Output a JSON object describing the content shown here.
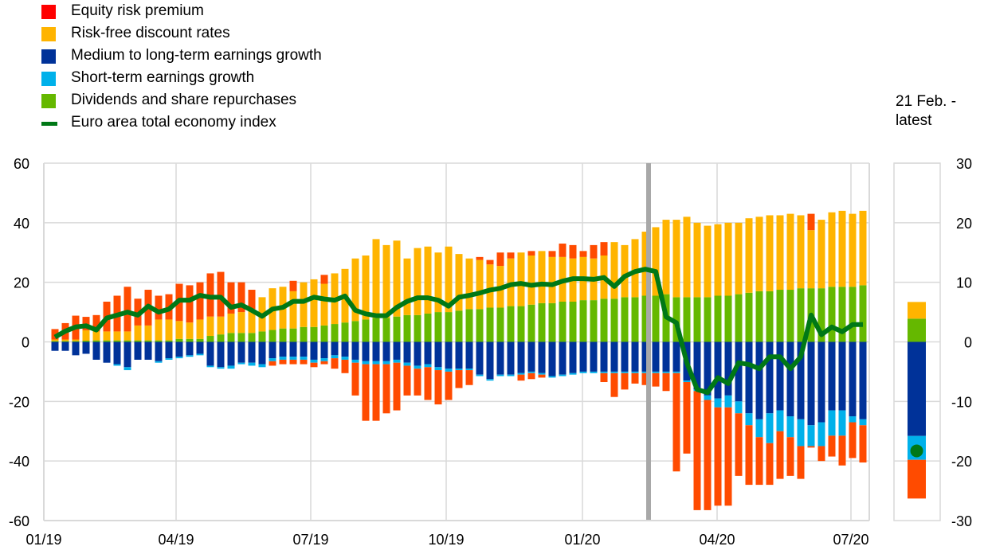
{
  "legend": [
    {
      "label": "Equity risk premium",
      "color": "#ff0000",
      "kind": "box"
    },
    {
      "label": "Risk-free discount rates",
      "color": "#ffb400",
      "kind": "box"
    },
    {
      "label": "Medium to long-term earnings growth",
      "color": "#003299",
      "kind": "box"
    },
    {
      "label": "Short-term earnings growth",
      "color": "#00b1ea",
      "kind": "box"
    },
    {
      "label": "Dividends and share repurchases",
      "color": "#65b800",
      "kind": "box"
    },
    {
      "label": "Euro area total economy index",
      "color": "#007816",
      "kind": "line"
    }
  ],
  "side_panel": {
    "title_line1": "21 Feb. -",
    "title_line2": "latest",
    "stack": {
      "dividends": 3.9,
      "risk_free": 2.8,
      "medium_long_earnings": -15.8,
      "short_term_earnings": -4.0,
      "equity_risk_premium": -6.5
    },
    "index_value": -18.3
  },
  "chart_data": {
    "type": "bar",
    "subtype": "stacked bar with line",
    "left_axis": {
      "ylim": [
        -60,
        60
      ],
      "ticks": [
        "60",
        "40",
        "20",
        "0",
        "-20",
        "-40",
        "-60"
      ]
    },
    "right_axis": {
      "ylim": [
        -30,
        30
      ],
      "ticks": [
        "30",
        "20",
        "10",
        "0",
        "-10",
        "-20",
        "-30"
      ]
    },
    "x_ticks": [
      "01/19",
      "04/19",
      "07/19",
      "10/19",
      "01/20",
      "04/20",
      "07/20"
    ],
    "grid": true,
    "vertical_marker": "21 Feb. 2020",
    "colors": {
      "erp": "#ff4b00",
      "rf": "#ffb400",
      "mlt": "#003299",
      "st": "#00b1ea",
      "div": "#65b800",
      "line": "#007816",
      "marker": "#a8a8a8",
      "grid": "#d9d9d9"
    },
    "series_order": [
      "div",
      "rf",
      "erp_pos",
      "mlt",
      "st",
      "erp_neg"
    ],
    "bars": [
      {
        "div": 0.3,
        "rf": 0.5,
        "erp_pos": 3.5,
        "mlt": -3,
        "st": 0,
        "erp_neg": 0,
        "line": 0.8
      },
      {
        "div": 0.3,
        "rf": 0.5,
        "erp_pos": 5.5,
        "mlt": -3,
        "st": 0,
        "erp_neg": 0,
        "line": 1.8
      },
      {
        "div": 0.3,
        "rf": 0.5,
        "erp_pos": 8,
        "mlt": -4.5,
        "st": 0,
        "erp_neg": 0,
        "line": 2.5
      },
      {
        "div": 0.4,
        "rf": 3.5,
        "erp_pos": 4.5,
        "mlt": -4,
        "st": 0,
        "erp_neg": 0,
        "line": 2.7
      },
      {
        "div": 0.5,
        "rf": 3,
        "erp_pos": 5.5,
        "mlt": -6,
        "st": 0,
        "erp_neg": 0,
        "line": 2
      },
      {
        "div": 0.5,
        "rf": 3,
        "erp_pos": 10,
        "mlt": -7,
        "st": 0,
        "erp_neg": 0,
        "line": 4
      },
      {
        "div": 0.5,
        "rf": 3,
        "erp_pos": 12,
        "mlt": -7.5,
        "st": -0.5,
        "erp_neg": 0,
        "line": 4.5
      },
      {
        "div": 0.5,
        "rf": 3,
        "erp_pos": 15,
        "mlt": -8.5,
        "st": -1,
        "erp_neg": 0,
        "line": 5
      },
      {
        "div": 0.5,
        "rf": 5,
        "erp_pos": 9,
        "mlt": -6,
        "st": 0,
        "erp_neg": 0,
        "line": 4.5
      },
      {
        "div": 0.5,
        "rf": 5,
        "erp_pos": 12,
        "mlt": -6,
        "st": 0,
        "erp_neg": 0,
        "line": 6
      },
      {
        "div": 0.5,
        "rf": 7,
        "erp_pos": 8,
        "mlt": -6.5,
        "st": -0.5,
        "erp_neg": 0,
        "line": 5
      },
      {
        "div": 0.5,
        "rf": 7,
        "erp_pos": 8.5,
        "mlt": -5.5,
        "st": -0.5,
        "erp_neg": 0,
        "line": 5.5
      },
      {
        "div": 1,
        "rf": 6,
        "erp_pos": 12.5,
        "mlt": -5,
        "st": -0.5,
        "erp_neg": 0,
        "line": 7
      },
      {
        "div": 1,
        "rf": 5.5,
        "erp_pos": 12.5,
        "mlt": -4.5,
        "st": -0.5,
        "erp_neg": 0,
        "line": 7
      },
      {
        "div": 1,
        "rf": 6.5,
        "erp_pos": 12.5,
        "mlt": -4,
        "st": -0.5,
        "erp_neg": 0,
        "line": 7.8
      },
      {
        "div": 2,
        "rf": 6.5,
        "erp_pos": 14.5,
        "mlt": -8,
        "st": -0.5,
        "erp_neg": 0,
        "line": 7.5
      },
      {
        "div": 2.5,
        "rf": 6,
        "erp_pos": 15,
        "mlt": -8.5,
        "st": -0.5,
        "erp_neg": 0,
        "line": 7.5
      },
      {
        "div": 3,
        "rf": 6.5,
        "erp_pos": 10.5,
        "mlt": -8,
        "st": -1,
        "erp_neg": 0,
        "line": 5.8
      },
      {
        "div": 3,
        "rf": 7,
        "erp_pos": 10,
        "mlt": -7,
        "st": -0.5,
        "erp_neg": 0,
        "line": 6.2
      },
      {
        "div": 3,
        "rf": 8,
        "erp_pos": 6.5,
        "mlt": -7,
        "st": -1,
        "erp_neg": 0,
        "line": 5.3
      },
      {
        "div": 3.5,
        "rf": 11.5,
        "erp_pos": 0,
        "mlt": -7.5,
        "st": -1,
        "erp_neg": 0,
        "line": 4.3
      },
      {
        "div": 4,
        "rf": 14,
        "erp_pos": 0,
        "mlt": -5.5,
        "st": -1,
        "erp_neg": -1.5,
        "line": 5.5
      },
      {
        "div": 4.5,
        "rf": 14,
        "erp_pos": 0,
        "mlt": -5,
        "st": -1,
        "erp_neg": -1.5,
        "line": 5.8
      },
      {
        "div": 4.5,
        "rf": 12.5,
        "erp_pos": 3.5,
        "mlt": -5,
        "st": -1,
        "erp_neg": -1.5,
        "line": 6.8
      },
      {
        "div": 5,
        "rf": 15,
        "erp_pos": 0,
        "mlt": -5,
        "st": -1,
        "erp_neg": -1.5,
        "line": 6.8
      },
      {
        "div": 5,
        "rf": 16,
        "erp_pos": 0,
        "mlt": -6,
        "st": -1,
        "erp_neg": -1.5,
        "line": 7.5
      },
      {
        "div": 5.5,
        "rf": 14,
        "erp_pos": 3,
        "mlt": -5.5,
        "st": -1,
        "erp_neg": -1,
        "line": 7.2
      },
      {
        "div": 6,
        "rf": 17,
        "erp_pos": 0,
        "mlt": -4.5,
        "st": -1,
        "erp_neg": -3.5,
        "line": 7
      },
      {
        "div": 6.5,
        "rf": 18,
        "erp_pos": 0,
        "mlt": -5,
        "st": -1,
        "erp_neg": -4.5,
        "line": 7.7
      },
      {
        "div": 7,
        "rf": 21,
        "erp_pos": 0,
        "mlt": -6,
        "st": -1,
        "erp_neg": -11,
        "line": 5.3
      },
      {
        "div": 7.5,
        "rf": 21.5,
        "erp_pos": 0,
        "mlt": -6.5,
        "st": -1,
        "erp_neg": -19,
        "line": 4.7
      },
      {
        "div": 8,
        "rf": 26.5,
        "erp_pos": 0,
        "mlt": -6.5,
        "st": -1,
        "erp_neg": -19,
        "line": 4.4
      },
      {
        "div": 8,
        "rf": 24.5,
        "erp_pos": 0,
        "mlt": -6.5,
        "st": -1,
        "erp_neg": -16.5,
        "line": 4.4
      },
      {
        "div": 8.5,
        "rf": 25.5,
        "erp_pos": 0,
        "mlt": -6,
        "st": -1,
        "erp_neg": -16,
        "line": 5.8
      },
      {
        "div": 9,
        "rf": 19,
        "erp_pos": 0,
        "mlt": -7,
        "st": -1,
        "erp_neg": -10,
        "line": 6.8
      },
      {
        "div": 9,
        "rf": 22.5,
        "erp_pos": 0,
        "mlt": -8,
        "st": -1,
        "erp_neg": -9,
        "line": 7.4
      },
      {
        "div": 9.5,
        "rf": 22.5,
        "erp_pos": 0,
        "mlt": -7.5,
        "st": -1,
        "erp_neg": -11,
        "line": 7.4
      },
      {
        "div": 10,
        "rf": 20,
        "erp_pos": 0,
        "mlt": -8.5,
        "st": -1,
        "erp_neg": -11.5,
        "line": 7
      },
      {
        "div": 10,
        "rf": 22,
        "erp_pos": 0,
        "mlt": -9,
        "st": -1,
        "erp_neg": -9.5,
        "line": 6
      },
      {
        "div": 10.5,
        "rf": 19,
        "erp_pos": 0,
        "mlt": -9,
        "st": -0.5,
        "erp_neg": -6,
        "line": 7.5
      },
      {
        "div": 11,
        "rf": 17,
        "erp_pos": 0,
        "mlt": -9,
        "st": -0.5,
        "erp_neg": -5,
        "line": 7.8
      },
      {
        "div": 11,
        "rf": 16.5,
        "erp_pos": 1,
        "mlt": -11,
        "st": -0.5,
        "erp_neg": 0,
        "line": 8.2
      },
      {
        "div": 11.5,
        "rf": 14.5,
        "erp_pos": 1.5,
        "mlt": -12.5,
        "st": -0.5,
        "erp_neg": 0,
        "line": 8.7
      },
      {
        "div": 11.5,
        "rf": 14,
        "erp_pos": 4.5,
        "mlt": -11,
        "st": -0.5,
        "erp_neg": 0,
        "line": 9
      },
      {
        "div": 12,
        "rf": 16,
        "erp_pos": 2,
        "mlt": -11,
        "st": -0.5,
        "erp_neg": 0,
        "line": 9.6
      },
      {
        "div": 12,
        "rf": 18,
        "erp_pos": 0,
        "mlt": -10.5,
        "st": -0.5,
        "erp_neg": -2,
        "line": 9.8
      },
      {
        "div": 12.5,
        "rf": 16.5,
        "erp_pos": 1.5,
        "mlt": -10,
        "st": -0.5,
        "erp_neg": -2,
        "line": 9.5
      },
      {
        "div": 13,
        "rf": 17.5,
        "erp_pos": 0,
        "mlt": -10.5,
        "st": -0.5,
        "erp_neg": -1,
        "line": 9.7
      },
      {
        "div": 13,
        "rf": 15.5,
        "erp_pos": 2,
        "mlt": -11.5,
        "st": -0.5,
        "erp_neg": 0,
        "line": 9.6
      },
      {
        "div": 13.5,
        "rf": 15,
        "erp_pos": 4.5,
        "mlt": -11,
        "st": -0.5,
        "erp_neg": 0,
        "line": 10.2
      },
      {
        "div": 13.5,
        "rf": 14.5,
        "erp_pos": 4.5,
        "mlt": -10.5,
        "st": -0.5,
        "erp_neg": 0,
        "line": 10.6
      },
      {
        "div": 14,
        "rf": 14.5,
        "erp_pos": 2,
        "mlt": -10,
        "st": -0.5,
        "erp_neg": 0,
        "line": 10.6
      },
      {
        "div": 14,
        "rf": 14,
        "erp_pos": 4.5,
        "mlt": -10,
        "st": -0.5,
        "erp_neg": 0,
        "line": 10.5
      },
      {
        "div": 14.5,
        "rf": 14.5,
        "erp_pos": 4.5,
        "mlt": -10,
        "st": -0.5,
        "erp_neg": -3,
        "line": 10.8
      },
      {
        "div": 14.5,
        "rf": 19,
        "erp_pos": 0,
        "mlt": -10,
        "st": -0.5,
        "erp_neg": -8,
        "line": 9.3
      },
      {
        "div": 15,
        "rf": 17.5,
        "erp_pos": 0,
        "mlt": -10,
        "st": -0.5,
        "erp_neg": -5.5,
        "line": 11
      },
      {
        "div": 15,
        "rf": 19.5,
        "erp_pos": 0,
        "mlt": -10,
        "st": -0.5,
        "erp_neg": -3.5,
        "line": 11.8
      },
      {
        "div": 15.5,
        "rf": 21.5,
        "erp_pos": 0,
        "mlt": -10,
        "st": -0.5,
        "erp_neg": -4,
        "line": 12.2
      },
      {
        "div": 15.5,
        "rf": 23,
        "erp_pos": 0,
        "mlt": -10,
        "st": -0.5,
        "erp_neg": -4.5,
        "line": 11.8
      },
      {
        "div": 16,
        "rf": 25,
        "erp_pos": 0,
        "mlt": -10,
        "st": -0.5,
        "erp_neg": -6,
        "line": 4.2
      },
      {
        "div": 15,
        "rf": 26,
        "erp_pos": 0,
        "mlt": -10,
        "st": -0.5,
        "erp_neg": -33,
        "line": 3.2
      },
      {
        "div": 15,
        "rf": 27,
        "erp_pos": 0,
        "mlt": -13,
        "st": -0.5,
        "erp_neg": -24,
        "line": -3.5
      },
      {
        "div": 15,
        "rf": 25,
        "erp_pos": 0,
        "mlt": -16,
        "st": -0.5,
        "erp_neg": -40,
        "line": -8
      },
      {
        "div": 15,
        "rf": 24,
        "erp_pos": 0,
        "mlt": -18,
        "st": -1.5,
        "erp_neg": -37,
        "line": -8.5
      },
      {
        "div": 15.5,
        "rf": 24,
        "erp_pos": 0,
        "mlt": -19,
        "st": -3,
        "erp_neg": -33,
        "line": -6
      },
      {
        "div": 15.5,
        "rf": 24.5,
        "erp_pos": 0,
        "mlt": -18,
        "st": -4,
        "erp_neg": -33,
        "line": -7
      },
      {
        "div": 16,
        "rf": 24,
        "erp_pos": 0,
        "mlt": -20,
        "st": -4,
        "erp_neg": -21,
        "line": -3.5
      },
      {
        "div": 16.5,
        "rf": 25,
        "erp_pos": 0,
        "mlt": -24,
        "st": -4,
        "erp_neg": -20,
        "line": -3.8
      },
      {
        "div": 17,
        "rf": 25,
        "erp_pos": 0,
        "mlt": -26,
        "st": -6,
        "erp_neg": -16,
        "line": -4.5
      },
      {
        "div": 17,
        "rf": 25.5,
        "erp_pos": 0,
        "mlt": -24,
        "st": -10,
        "erp_neg": -14,
        "line": -2.5
      },
      {
        "div": 17.5,
        "rf": 25,
        "erp_pos": 0,
        "mlt": -23,
        "st": -7,
        "erp_neg": -16,
        "line": -2.5
      },
      {
        "div": 17.5,
        "rf": 25.5,
        "erp_pos": 0,
        "mlt": -25,
        "st": -7,
        "erp_neg": -13,
        "line": -4.5
      },
      {
        "div": 18,
        "rf": 24.5,
        "erp_pos": 0,
        "mlt": -26,
        "st": -9,
        "erp_neg": -11,
        "line": -2.5
      },
      {
        "div": 18,
        "rf": 19.5,
        "erp_pos": 5.5,
        "mlt": -28,
        "st": -7,
        "erp_neg": -0.5,
        "line": 4.5
      },
      {
        "div": 18,
        "rf": 23,
        "erp_pos": 0,
        "mlt": -27,
        "st": -8,
        "erp_neg": -5,
        "line": 1.2
      },
      {
        "div": 18.5,
        "rf": 25,
        "erp_pos": 0,
        "mlt": -23,
        "st": -8.5,
        "erp_neg": -7,
        "line": 2.5
      },
      {
        "div": 18.5,
        "rf": 25.5,
        "erp_pos": 0,
        "mlt": -23,
        "st": -8.5,
        "erp_neg": -10,
        "line": 1.7
      },
      {
        "div": 18.5,
        "rf": 24.5,
        "erp_pos": 0,
        "mlt": -25,
        "st": -2,
        "erp_neg": -12,
        "line": 2.9
      },
      {
        "div": 19,
        "rf": 25,
        "erp_pos": 0,
        "mlt": -26,
        "st": -2,
        "erp_neg": -12.5,
        "line": 2.9
      }
    ]
  }
}
